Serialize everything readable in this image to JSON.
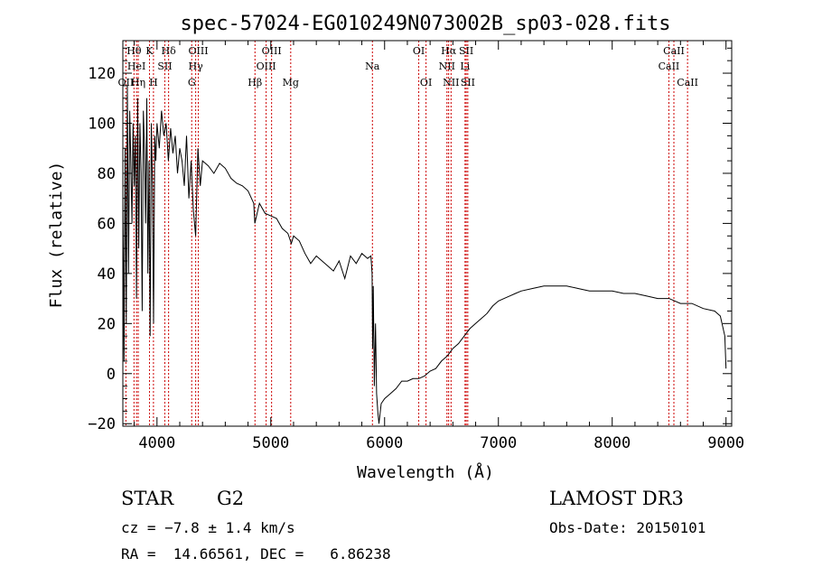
{
  "chart_data": {
    "type": "line",
    "title": "spec-57024-EG010249N073002B_sp03-028.fits",
    "xlabel": "Wavelength (Å)",
    "ylabel": "Flux (relative)",
    "xlim": [
      3700,
      9050
    ],
    "ylim": [
      -21,
      133
    ],
    "xticks": [
      4000,
      5000,
      6000,
      7000,
      8000,
      9000
    ],
    "yticks": [
      -20,
      0,
      20,
      40,
      60,
      80,
      100,
      120
    ],
    "grid": false,
    "line_color": "#000000",
    "marker_color": "#cc0000",
    "spectrum": {
      "x": [
        3700,
        3710,
        3720,
        3730,
        3740,
        3750,
        3760,
        3770,
        3780,
        3790,
        3800,
        3810,
        3820,
        3830,
        3840,
        3850,
        3860,
        3870,
        3880,
        3890,
        3900,
        3910,
        3920,
        3930,
        3940,
        3950,
        3960,
        3970,
        3980,
        3990,
        4000,
        4020,
        4040,
        4060,
        4080,
        4100,
        4120,
        4140,
        4160,
        4180,
        4200,
        4220,
        4240,
        4260,
        4280,
        4300,
        4320,
        4340,
        4360,
        4380,
        4400,
        4450,
        4500,
        4550,
        4600,
        4650,
        4700,
        4750,
        4800,
        4850,
        4860,
        4900,
        4950,
        5000,
        5050,
        5100,
        5150,
        5180,
        5200,
        5250,
        5300,
        5350,
        5400,
        5450,
        5500,
        5550,
        5600,
        5650,
        5700,
        5750,
        5800,
        5850,
        5880,
        5890,
        5895,
        5900,
        5910,
        5920,
        5930,
        5940,
        5950,
        5970,
        6000,
        6050,
        6100,
        6150,
        6200,
        6250,
        6300,
        6350,
        6400,
        6450,
        6500,
        6550,
        6600,
        6650,
        6700,
        6750,
        6800,
        6850,
        6900,
        6950,
        7000,
        7050,
        7100,
        7150,
        7200,
        7300,
        7400,
        7500,
        7600,
        7700,
        7800,
        7900,
        8000,
        8100,
        8200,
        8300,
        8400,
        8500,
        8600,
        8700,
        8800,
        8900,
        8950,
        8990,
        9000
      ],
      "y": [
        70,
        5,
        90,
        20,
        115,
        40,
        105,
        85,
        60,
        100,
        75,
        95,
        30,
        110,
        50,
        100,
        80,
        25,
        105,
        90,
        60,
        110,
        40,
        85,
        15,
        100,
        75,
        20,
        95,
        85,
        100,
        90,
        105,
        95,
        100,
        85,
        98,
        88,
        95,
        80,
        90,
        85,
        75,
        95,
        70,
        85,
        65,
        55,
        90,
        75,
        85,
        83,
        80,
        84,
        82,
        78,
        76,
        75,
        73,
        68,
        60,
        68,
        64,
        63,
        62,
        58,
        56,
        52,
        55,
        53,
        48,
        44,
        47,
        45,
        43,
        41,
        45,
        38,
        47,
        44,
        48,
        46,
        47,
        40,
        10,
        35,
        -5,
        20,
        -8,
        -15,
        -20,
        -12,
        -10,
        -8,
        -6,
        -3,
        -3,
        -2,
        -2,
        -1,
        1,
        2,
        5,
        7,
        10,
        12,
        15,
        18,
        20,
        22,
        24,
        27,
        29,
        30,
        31,
        32,
        33,
        34,
        35,
        35,
        35,
        34,
        33,
        33,
        33,
        32,
        32,
        31,
        30,
        30,
        28,
        28,
        26,
        25,
        23,
        15,
        2
      ]
    },
    "lines": [
      {
        "label": "Hθ",
        "x": 3798,
        "row": 0
      },
      {
        "label": "OII",
        "x": 3727,
        "row": 2
      },
      {
        "label": "HeI",
        "x": 3820,
        "row": 1
      },
      {
        "label": "Hη",
        "x": 3835,
        "row": 2
      },
      {
        "label": "K",
        "x": 3934,
        "row": 0
      },
      {
        "label": "SII",
        "x": 4069,
        "row": 1
      },
      {
        "label": "H",
        "x": 3969,
        "row": 2
      },
      {
        "label": "Hδ",
        "x": 4102,
        "row": 0
      },
      {
        "label": "OIII",
        "x": 4363,
        "row": 0
      },
      {
        "label": "Hγ",
        "x": 4340,
        "row": 1
      },
      {
        "label": "G",
        "x": 4305,
        "row": 2
      },
      {
        "label": "Hβ",
        "x": 4861,
        "row": 2
      },
      {
        "label": "OIII",
        "x": 5007,
        "row": 0
      },
      {
        "label": "OIII",
        "x": 4959,
        "row": 1
      },
      {
        "label": "Mg",
        "x": 5175,
        "row": 2
      },
      {
        "label": "Na",
        "x": 5893,
        "row": 1
      },
      {
        "label": "OI",
        "x": 6300,
        "row": 0
      },
      {
        "label": "OI",
        "x": 6364,
        "row": 2
      },
      {
        "label": "Hα",
        "x": 6563,
        "row": 0
      },
      {
        "label": "NII",
        "x": 6548,
        "row": 1
      },
      {
        "label": "NII",
        "x": 6584,
        "row": 2
      },
      {
        "label": "SII",
        "x": 6717,
        "row": 0
      },
      {
        "label": "Li",
        "x": 6707,
        "row": 1
      },
      {
        "label": "SII",
        "x": 6731,
        "row": 2
      },
      {
        "label": "CaII",
        "x": 8542,
        "row": 0
      },
      {
        "label": "CaII",
        "x": 8498,
        "row": 1
      },
      {
        "label": "CaII",
        "x": 8662,
        "row": 2
      }
    ]
  },
  "info": {
    "object_class": "STAR",
    "subclass": "G2",
    "survey": "LAMOST DR3",
    "cz": "cz = −7.8 ± 1.4 km/s",
    "obs_date": "Obs-Date: 20150101",
    "coords": "RA =  14.66561, DEC =   6.86238"
  }
}
